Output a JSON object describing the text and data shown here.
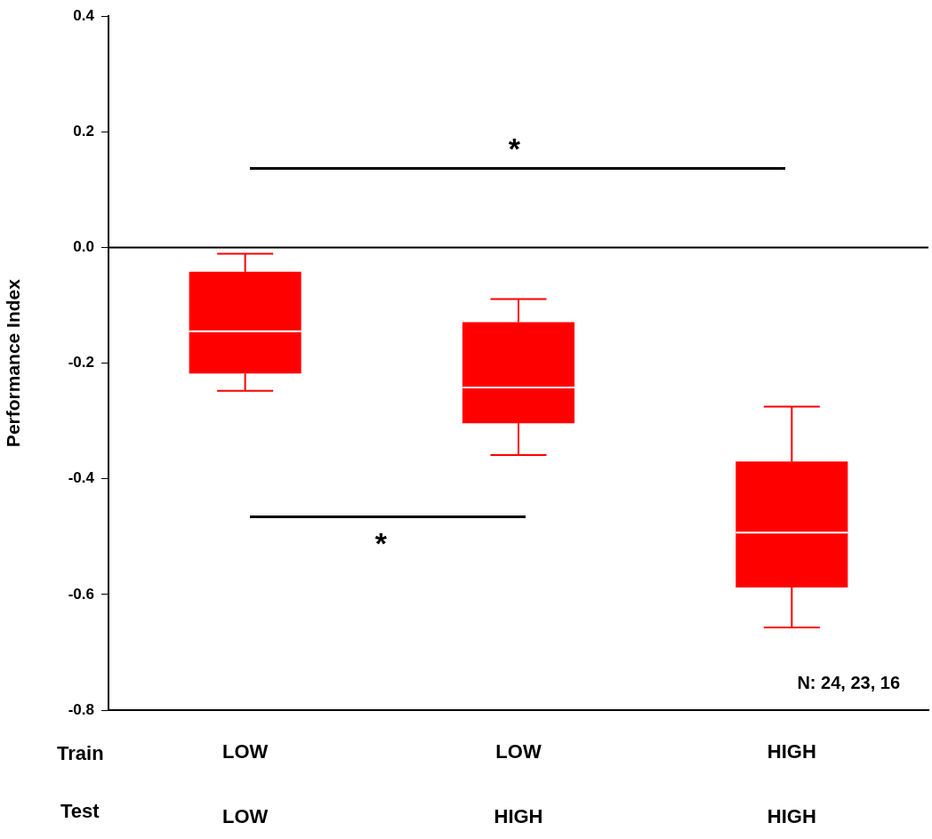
{
  "chart_data": {
    "type": "box",
    "ylabel": "Performance Index",
    "categories": [
      "LOW\nLOW",
      "LOW\nHIGH",
      "HIGH\nHIGH"
    ],
    "boxes": [
      {
        "low": -0.248,
        "q1": -0.218,
        "median": -0.145,
        "q3": -0.042,
        "high": -0.011
      },
      {
        "low": -0.359,
        "q1": -0.304,
        "median": -0.242,
        "q3": -0.129,
        "high": -0.089
      },
      {
        "low": -0.657,
        "q1": -0.588,
        "median": -0.493,
        "q3": -0.37,
        "high": -0.275
      }
    ],
    "color": "#ff0000",
    "ylim": [
      -0.8,
      0.4
    ],
    "yticks": [
      {
        "value": -0.8,
        "label": "-0.8"
      },
      {
        "value": -0.6,
        "label": "-0.6"
      },
      {
        "value": -0.4,
        "label": "-0.4"
      },
      {
        "value": -0.2,
        "label": "-0.2"
      },
      {
        "value": 0,
        "label": "0.0"
      },
      {
        "value": 0.2,
        "label": "0.2"
      },
      {
        "value": 0.4,
        "label": "0.4"
      }
    ],
    "ref_lines": [
      {
        "axis": "y",
        "value": 0,
        "color": "#000000"
      }
    ],
    "annotations": [
      "*",
      "*",
      "N: 24, 23, 16",
      "Train",
      "Test"
    ],
    "grid": false,
    "legend": false
  }
}
